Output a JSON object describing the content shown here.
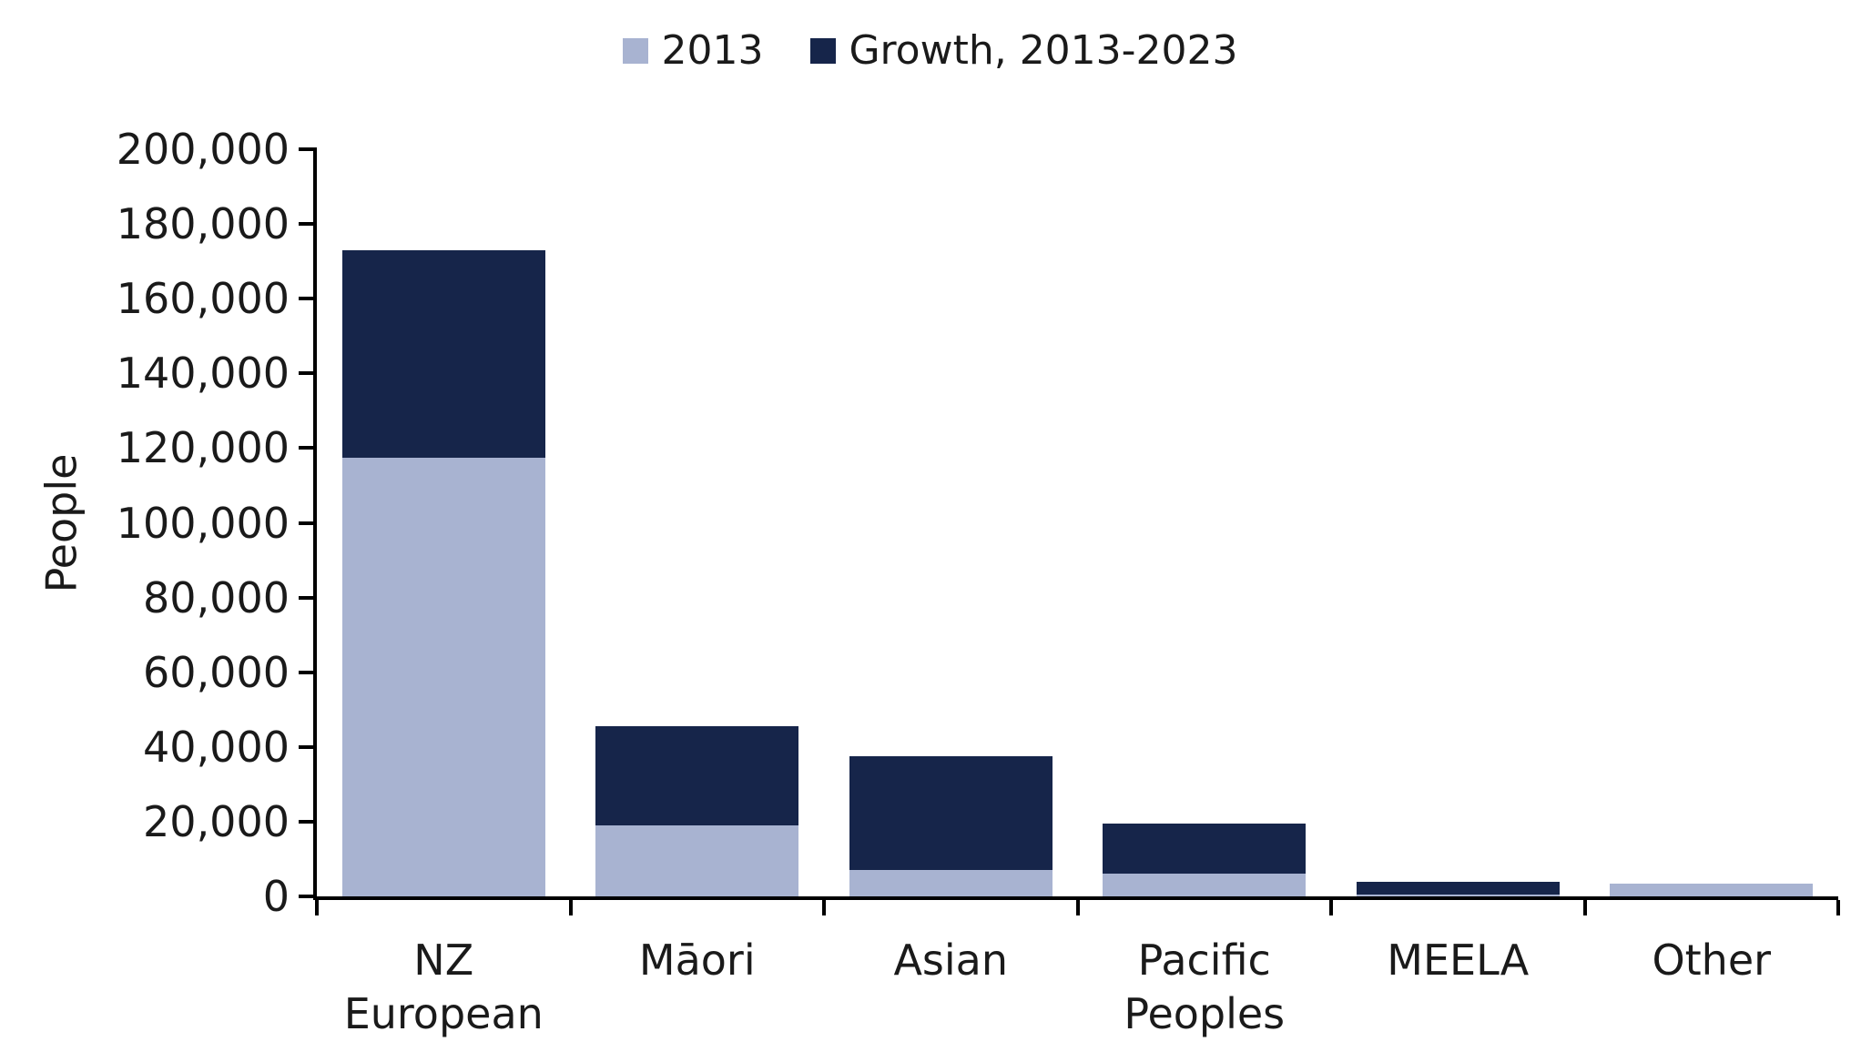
{
  "chart_data": {
    "type": "bar",
    "stacked": true,
    "categories": [
      "NZ European",
      "Māori",
      "Asian",
      "Pacific Peoples",
      "MEELA",
      "Other"
    ],
    "series": [
      {
        "name": "2013",
        "color": "#a8b3d1",
        "values": [
          117500,
          19000,
          7000,
          6000,
          400,
          3500
        ]
      },
      {
        "name": "Growth, 2013-2023",
        "color": "#16254a",
        "values": [
          55500,
          26500,
          30500,
          13500,
          3600,
          0
        ]
      }
    ],
    "totals": [
      173000,
      45500,
      37500,
      19500,
      4000,
      3500
    ],
    "ylabel": "People",
    "ylim": [
      0,
      200000
    ],
    "ytick_step": 20000,
    "ytick_labels": [
      "0",
      "20,000",
      "40,000",
      "60,000",
      "80,000",
      "100,000",
      "120,000",
      "140,000",
      "160,000",
      "180,000",
      "200,000"
    ],
    "legend_position": "top",
    "grid": false
  },
  "colors": {
    "axis": "#000000",
    "text": "#1a1a1a",
    "background": "#ffffff"
  }
}
